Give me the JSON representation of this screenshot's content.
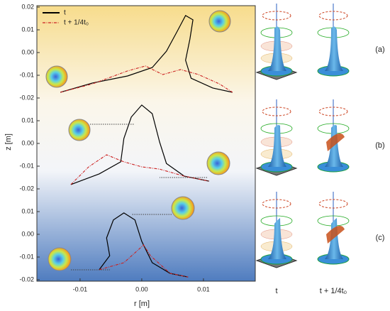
{
  "chart_data": [
    {
      "type": "line",
      "series": [
        {
          "name": "t",
          "color": "#000000",
          "x": [
            -0.0132,
            -0.008,
            -0.0023,
            0.0017,
            0.004,
            0.0057,
            0.0071,
            0.0083,
            0.0078,
            0.0071,
            0.008,
            0.0115,
            0.0147
          ],
          "values": [
            -0.0175,
            -0.0134,
            -0.0103,
            -0.0066,
            0.0006,
            0.0091,
            0.0163,
            0.0144,
            0.0059,
            -0.0034,
            -0.0113,
            -0.0156,
            -0.0175
          ]
        },
        {
          "name": "t + 1/4t₀",
          "color": "#cc2222",
          "x": [
            -0.0132,
            -0.008,
            -0.0023,
            0.0006,
            0.0034,
            0.0063,
            0.0092,
            0.0126,
            0.0147
          ],
          "values": [
            -0.0175,
            -0.0138,
            -0.0081,
            -0.0059,
            -0.0097,
            -0.0075,
            -0.0097,
            -0.0138,
            -0.0175
          ]
        }
      ],
      "xlim": [
        -0.017,
        0.0184
      ],
      "ylim": [
        -0.02,
        0.02
      ],
      "yticks": [
        0.02,
        0.01,
        {
          "value": 0,
          "label": "0.00"
        },
        -0.01,
        -0.02
      ]
    },
    {
      "type": "line",
      "y_label": "z [m]",
      "series": [
        {
          "color": "#000000",
          "x": [
            -0.0115,
            -0.0069,
            -0.0034,
            -0.0029,
            -0.0017,
            0,
            0.0017,
            0.0029,
            0.004,
            0.0069,
            0.0109
          ],
          "values": [
            -0.0181,
            -0.0134,
            -0.0081,
            0.0022,
            0.0116,
            0.0169,
            0.0131,
            0.0006,
            -0.0088,
            -0.0144,
            -0.0166
          ]
        },
        {
          "color": "#cc2222",
          "x": [
            -0.0115,
            -0.0086,
            -0.0057,
            -0.0029,
            0,
            0.0029,
            0.0069,
            0.0109
          ],
          "values": [
            -0.0181,
            -0.0103,
            -0.005,
            -0.0081,
            -0.0103,
            -0.0113,
            -0.0144,
            -0.0166
          ]
        }
      ],
      "xlim": [
        -0.017,
        0.0184
      ],
      "ylim": [
        -0.02,
        0.02
      ],
      "yticks": [
        0.01,
        {
          "value": 0,
          "label": "0.00"
        },
        -0.01,
        -0.02
      ]
    },
    {
      "type": "line",
      "x_label": "r [m]",
      "series": [
        {
          "color": "#000000",
          "x": [
            -0.0069,
            -0.0052,
            -0.0057,
            -0.0046,
            -0.0029,
            -0.0011,
            0,
            0.0017,
            0.0046,
            0.0075
          ],
          "values": [
            -0.0156,
            -0.0094,
            -0.0016,
            0.0063,
            0.0094,
            0.0063,
            -0.0031,
            -0.0125,
            -0.0172,
            -0.0188
          ]
        },
        {
          "color": "#cc2222",
          "x": [
            -0.0069,
            -0.0029,
            -0.0006,
            0.0003,
            0.0014,
            0.0046,
            0.0075
          ],
          "values": [
            -0.0156,
            -0.0125,
            -0.0069,
            -0.0047,
            -0.0094,
            -0.0172,
            -0.0188
          ]
        }
      ],
      "xlim": [
        -0.017,
        0.0184
      ],
      "ylim": [
        -0.02,
        0.02
      ],
      "xticks": [
        -0.01,
        {
          "value": 0,
          "label": "0.00"
        },
        0.01
      ],
      "yticks": [
        0.01,
        {
          "value": 0,
          "label": "0.00"
        },
        -0.01,
        -0.02
      ]
    }
  ],
  "row_labels": [
    "(a)",
    "(b)",
    "(c)"
  ],
  "column_labels": [
    "t",
    "t + 1/4t₀"
  ]
}
